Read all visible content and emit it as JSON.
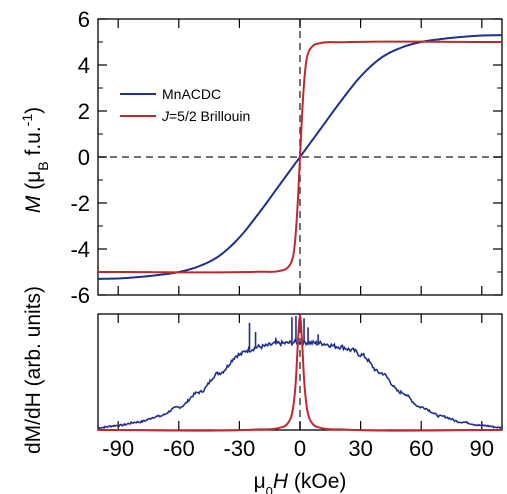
{
  "chart_data": [
    {
      "type": "line",
      "ylabel": {
        "symbol": "M",
        "text": " (μ",
        "sub": "B",
        "text2": " f.u.",
        "sup": "-1",
        "close": ")"
      },
      "xlim": [
        -100,
        100
      ],
      "ylim": [
        -6,
        6
      ],
      "y_ticks": [
        -6,
        -4,
        -2,
        0,
        2,
        4,
        6
      ],
      "y_tick_labels": [
        "-6",
        "-4",
        "-2",
        "0",
        "2",
        "4",
        "6"
      ],
      "x_ticks": [
        -90,
        -60,
        -30,
        0,
        30,
        60,
        90
      ],
      "legend": {
        "placement": "upper-left"
      },
      "series": [
        {
          "name": "MnACDC",
          "color": "#1f2f8f",
          "x": [
            -100,
            -90,
            -80,
            -70,
            -60,
            -50,
            -40,
            -30,
            -20,
            -10,
            0,
            10,
            20,
            30,
            40,
            50,
            60,
            70,
            80,
            90,
            100
          ],
          "y": [
            -5.3,
            -5.28,
            -5.22,
            -5.13,
            -5.0,
            -4.75,
            -4.3,
            -3.5,
            -2.4,
            -1.2,
            0,
            1.2,
            2.4,
            3.5,
            4.3,
            4.75,
            5.0,
            5.13,
            5.22,
            5.28,
            5.3
          ]
        },
        {
          "name_symbol": "J",
          "name_rest": "=5/2 Brillouin",
          "color": "#c0282d",
          "x": [
            -100,
            -20,
            -10,
            -6,
            -4,
            -3,
            -2,
            -1,
            -0.5,
            0,
            0.5,
            1,
            2,
            3,
            4,
            6,
            10,
            20,
            100
          ],
          "y": [
            -5.0,
            -4.99,
            -4.95,
            -4.8,
            -4.5,
            -4.1,
            -3.2,
            -1.8,
            -0.9,
            0,
            0.9,
            1.8,
            3.2,
            4.1,
            4.5,
            4.8,
            4.95,
            4.99,
            5.0
          ]
        }
      ],
      "reference_lines": [
        {
          "axis": "x",
          "value": 0,
          "style": "dashed"
        },
        {
          "axis": "y",
          "value": 0,
          "style": "dashed"
        }
      ]
    },
    {
      "type": "line",
      "ylabel": "dM/dH (arb. units)",
      "xlabel": {
        "symbol": "μ",
        "sub": "0",
        "var": "H",
        "unit": " (kOe)"
      },
      "xlim": [
        -100,
        100
      ],
      "x_ticks": [
        -90,
        -60,
        -30,
        0,
        30,
        60,
        90
      ],
      "x_tick_labels": [
        "-90",
        "-60",
        "-30",
        "0",
        "30",
        "60",
        "90"
      ],
      "series": [
        {
          "name": "MnACDC",
          "color": "#1f2f8f",
          "x": [
            -100,
            -90,
            -80,
            -70,
            -60,
            -50,
            -40,
            -30,
            -26,
            -20,
            -10,
            0,
            10,
            20,
            26,
            30,
            40,
            50,
            60,
            70,
            80,
            90,
            100
          ],
          "y": [
            0.02,
            0.04,
            0.07,
            0.12,
            0.2,
            0.33,
            0.5,
            0.66,
            0.7,
            0.73,
            0.76,
            0.77,
            0.76,
            0.73,
            0.7,
            0.66,
            0.5,
            0.33,
            0.2,
            0.12,
            0.07,
            0.04,
            0.02
          ]
        },
        {
          "name": "J=5/2 Brillouin",
          "color": "#c0282d",
          "x": [
            -100,
            -20,
            -10,
            -6,
            -4,
            -3,
            -2,
            -1,
            0,
            1,
            2,
            3,
            4,
            6,
            10,
            20,
            100
          ],
          "y": [
            0.0,
            0.005,
            0.02,
            0.06,
            0.14,
            0.25,
            0.45,
            0.78,
            1.0,
            0.78,
            0.45,
            0.25,
            0.14,
            0.06,
            0.02,
            0.005,
            0.0
          ]
        }
      ],
      "spikes": {
        "x": [
          -25,
          -22,
          -12,
          -4,
          -2,
          2,
          4,
          9
        ],
        "y": [
          0.94,
          0.86,
          0.81,
          0.99,
          1.0,
          0.98,
          0.9,
          0.84
        ]
      },
      "reference_lines": [
        {
          "axis": "x",
          "value": 0,
          "style": "dashed"
        }
      ]
    }
  ]
}
